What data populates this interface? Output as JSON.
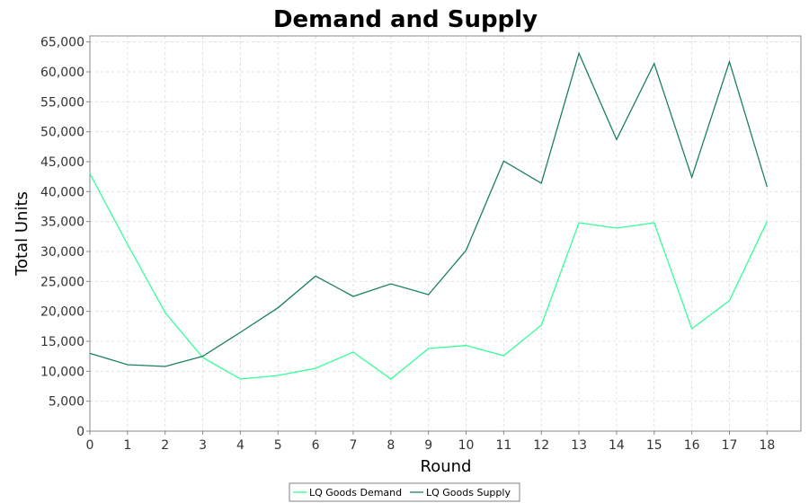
{
  "chart_data": {
    "type": "line",
    "title": "Demand and Supply",
    "xlabel": "Round",
    "ylabel": "Total Units",
    "x": [
      0,
      1,
      2,
      3,
      4,
      5,
      6,
      7,
      8,
      9,
      10,
      11,
      12,
      13,
      14,
      15,
      16,
      17,
      18
    ],
    "xlim": [
      0,
      18.9
    ],
    "ylim": [
      0,
      66000
    ],
    "yticks": [
      0,
      5000,
      10000,
      15000,
      20000,
      25000,
      30000,
      35000,
      40000,
      45000,
      50000,
      55000,
      60000,
      65000
    ],
    "ytick_labels": [
      "0",
      "5,000",
      "10,000",
      "15,000",
      "20,000",
      "25,000",
      "30,000",
      "35,000",
      "40,000",
      "45,000",
      "50,000",
      "55,000",
      "60,000",
      "65,000"
    ],
    "xtick_labels": [
      "0",
      "1",
      "2",
      "3",
      "4",
      "5",
      "6",
      "7",
      "8",
      "9",
      "10",
      "11",
      "12",
      "13",
      "14",
      "15",
      "16",
      "17",
      "18"
    ],
    "grid": true,
    "legend_position": "bottom",
    "series": [
      {
        "name": "LQ Goods Demand",
        "color": "#33ff99",
        "values": [
          43000,
          31200,
          19800,
          12300,
          8700,
          9300,
          10500,
          13200,
          8700,
          13800,
          14300,
          12600,
          17700,
          34800,
          33900,
          34800,
          17100,
          21800,
          35000
        ]
      },
      {
        "name": "LQ Goods Supply",
        "color": "#1a8060",
        "values": [
          13000,
          11100,
          10800,
          12500,
          16500,
          20600,
          25900,
          22500,
          24600,
          22800,
          30200,
          45100,
          41400,
          63100,
          48700,
          61400,
          42400,
          61700,
          40800
        ]
      }
    ]
  }
}
